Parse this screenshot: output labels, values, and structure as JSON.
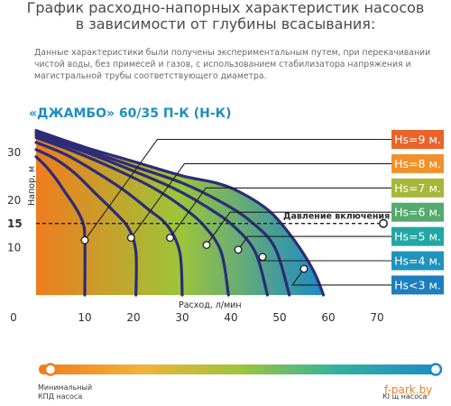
{
  "header": {
    "title_line1": "График расходно-напорных характеристик насосов",
    "title_line2": "в зависимости от глубины всасывания:",
    "note_line1": "Данные характеристики были получены экспериментальным путем, при перекачивании",
    "note_line2": "чистой воды, без примесей и газов, с использованием стабилизатора напряжения и",
    "note_line3": "магистральной трубы соответствующего диаметра."
  },
  "chart_data": {
    "type": "line",
    "title": "«ДЖАМБО» 60/35 П-К (Н-К)",
    "xlabel": "Расход, л/мин",
    "ylabel": "Напор, м",
    "xlim": [
      0,
      70
    ],
    "ylim": [
      0,
      35
    ],
    "xticks": [
      "0",
      "10",
      "20",
      "30",
      "40",
      "50",
      "60",
      "70"
    ],
    "yticks": [
      "10",
      "15",
      "20",
      "30"
    ],
    "highlight_ytick": "15",
    "grid": false,
    "reference_line": {
      "label": "Давление включения",
      "y": 15,
      "style": "dashed"
    },
    "series": [
      {
        "name": "Hs=9 м.",
        "points": [
          [
            0,
            29
          ],
          [
            2,
            27
          ],
          [
            4,
            24.5
          ],
          [
            6,
            21.5
          ],
          [
            8,
            18.5
          ],
          [
            9.5,
            15.5
          ],
          [
            10,
            12
          ],
          [
            10,
            0
          ]
        ],
        "marker": [
          10,
          11.5
        ]
      },
      {
        "name": "Hs=8 м.",
        "points": [
          [
            0,
            30.5
          ],
          [
            4,
            28.5
          ],
          [
            8,
            25.5
          ],
          [
            12,
            21.5
          ],
          [
            16,
            17.5
          ],
          [
            19,
            14
          ],
          [
            20.5,
            9
          ],
          [
            20.5,
            0
          ]
        ],
        "marker": [
          19.5,
          12
        ]
      },
      {
        "name": "Hs=7 м.",
        "points": [
          [
            0,
            32
          ],
          [
            6,
            29.5
          ],
          [
            12,
            26
          ],
          [
            18,
            22
          ],
          [
            23,
            18
          ],
          [
            27,
            14.5
          ],
          [
            29.5,
            9
          ],
          [
            30,
            0
          ]
        ],
        "marker": [
          27.5,
          12
        ]
      },
      {
        "name": "Hs=6 м.",
        "points": [
          [
            0,
            33
          ],
          [
            8,
            30
          ],
          [
            16,
            26.5
          ],
          [
            24,
            22.5
          ],
          [
            30,
            18.5
          ],
          [
            34.5,
            14.5
          ],
          [
            38,
            9
          ],
          [
            39.5,
            0
          ]
        ],
        "marker": [
          35,
          10.5
        ]
      },
      {
        "name": "Hs=5 м.",
        "points": [
          [
            0,
            33.5
          ],
          [
            10,
            30
          ],
          [
            20,
            26
          ],
          [
            28,
            22.5
          ],
          [
            35,
            18.5
          ],
          [
            40.5,
            14.5
          ],
          [
            45,
            9
          ],
          [
            47.5,
            0
          ]
        ],
        "marker": [
          41.5,
          9.5
        ]
      },
      {
        "name": "Hs=4 м.",
        "points": [
          [
            0,
            34
          ],
          [
            10,
            30.5
          ],
          [
            20,
            27
          ],
          [
            30,
            23.5
          ],
          [
            38,
            19.5
          ],
          [
            44,
            15.5
          ],
          [
            49,
            10
          ],
          [
            52,
            0
          ]
        ],
        "marker": [
          46.5,
          8
        ]
      },
      {
        "name": "Hs<3 м.",
        "points": [
          [
            0,
            34.5
          ],
          [
            10,
            31
          ],
          [
            20,
            28
          ],
          [
            30,
            25
          ],
          [
            37,
            23.5
          ],
          [
            42,
            21.5
          ],
          [
            48,
            17.5
          ],
          [
            53,
            11.5
          ],
          [
            57,
            5
          ],
          [
            59,
            0
          ]
        ],
        "marker": [
          55,
          5.5
        ]
      }
    ],
    "colors": {
      "curve": "#2c2c78",
      "fill_left": "#f07c1e",
      "fill_mid": "#9cc53a",
      "fill_right": "#1c8ac8",
      "reference": "#1f1f1f",
      "title": "#1d8fc3"
    },
    "hs_label_colors": [
      "#e8642a",
      "#f0922c",
      "#a5b83a",
      "#55aa6e",
      "#23a7a4",
      "#1e93bd",
      "#1c7ebe"
    ]
  },
  "efficiency_scale": {
    "min_label_line1": "Минимальный",
    "min_label_line2": "КПД насоса",
    "max_label": "КІ щ насоса",
    "gradient": [
      "#f07c1e",
      "#f3b13a",
      "#9cc53a",
      "#2fb1a2",
      "#1c8ac8"
    ]
  },
  "brand": "f-park.by"
}
